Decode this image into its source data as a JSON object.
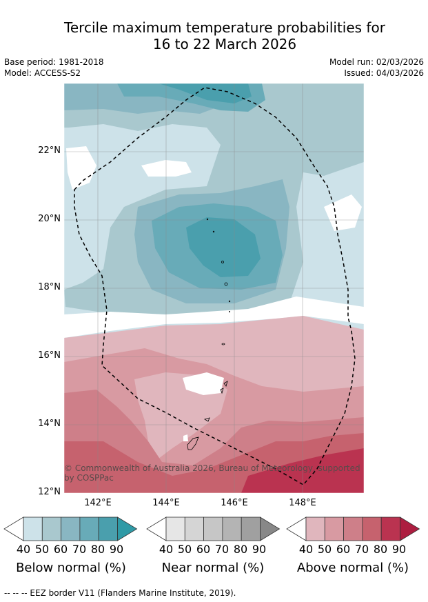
{
  "title_line1": "Tercile maximum temperature probabilities for",
  "title_line2": "16 to 22 March 2026",
  "base_period": "Base period: 1981-2018",
  "model": "Model: ACCESS-S2",
  "model_run": "Model run: 02/03/2026",
  "issued": "Issued: 04/03/2026",
  "y_ticks": [
    "22°N",
    "20°N",
    "18°N",
    "16°N",
    "14°N",
    "12°N"
  ],
  "x_ticks": [
    "142°E",
    "144°E",
    "146°E",
    "148°E"
  ],
  "copyright": "© Commonwealth of Australia 2026, Bureau of Meteorology, supported",
  "copyright_line2": "by COSPPac",
  "colorbars": [
    {
      "title": "Below normal (%)",
      "levels": [
        "40",
        "50",
        "60",
        "70",
        "80",
        "90"
      ],
      "colors": [
        "#cde2e9",
        "#a9c8ce",
        "#89b6c2",
        "#68abb8",
        "#4a9fad",
        "#2f9aa6"
      ]
    },
    {
      "title": "Near normal (%)",
      "levels": [
        "40",
        "50",
        "60",
        "70",
        "80",
        "90"
      ],
      "colors": [
        "#e6e6e6",
        "#d5d5d5",
        "#c6c6c6",
        "#b4b4b4",
        "#a0a0a0",
        "#888888"
      ]
    },
    {
      "title": "Above normal (%)",
      "levels": [
        "40",
        "50",
        "60",
        "70",
        "80",
        "90"
      ],
      "colors": [
        "#e0b6bd",
        "#d89aa2",
        "#ce7f89",
        "#c6626e",
        "#ba3350",
        "#ad1e40"
      ]
    }
  ],
  "footer": "--  --  -- EEZ border V11 (Flanders Marine Institute, 2019)."
}
